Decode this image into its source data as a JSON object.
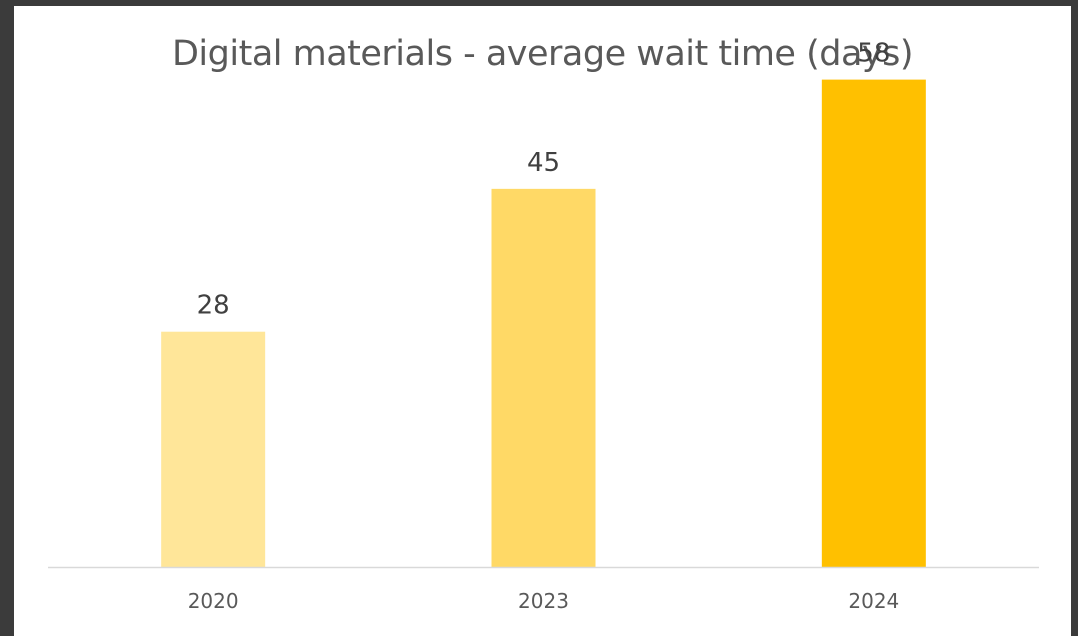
{
  "chart_data": {
    "type": "bar",
    "title": "Digital materials - average wait time (days)",
    "categories": [
      "2020",
      "2023",
      "2024"
    ],
    "values": [
      28,
      45,
      58
    ],
    "bar_colors": [
      "#FFE699",
      "#FFD966",
      "#FFC000"
    ],
    "ylim": [
      0,
      62
    ],
    "grid": false,
    "legend": "none",
    "data_labels": true,
    "axis_color": "#D9D9D9"
  }
}
